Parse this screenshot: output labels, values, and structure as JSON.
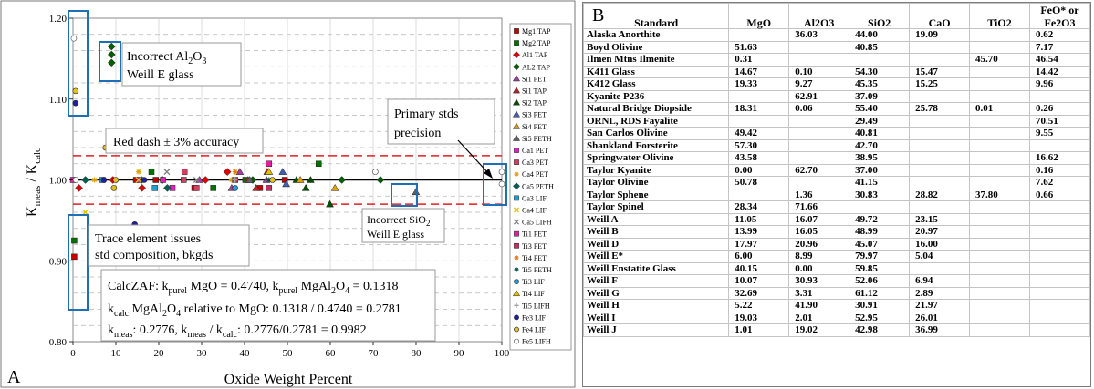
{
  "panel_a": {
    "letter": "A",
    "xlabel": "Oxide Weight Percent",
    "ylabel_main": "K",
    "ylabel_sub1": "meas",
    "ylabel_mid": " / K",
    "ylabel_sub2": "calc",
    "annotations": {
      "al2o3_l1_pre": "Incorrect Al",
      "al2o3_l1_s1": "2",
      "al2o3_l1_mid": "O",
      "al2o3_l1_s2": "3",
      "al2o3_l2": "Weill E glass",
      "red_dash": "Red dash ± 3% accuracy",
      "primary_l1": "Primary stds",
      "primary_l2": "precision",
      "trace_l1": "Trace element issues",
      "trace_l2": "std composition, bkgds",
      "sio2_l1_pre": "Incorrect SiO",
      "sio2_l1_s": "2",
      "sio2_l2": "Weill E glass",
      "calc_l1a": "CalcZAF: k",
      "calc_l1b": "purel",
      "calc_l1c": " MgO = 0.4740, k",
      "calc_l1d": "purel",
      "calc_l1e": " MgAl",
      "calc_l1f": "2",
      "calc_l1g": "O",
      "calc_l1h": "4",
      "calc_l1i": " = 0.1318",
      "calc_l2a": "k",
      "calc_l2b": "calc",
      "calc_l2c": " MgAl",
      "calc_l2d": "2",
      "calc_l2e": "O",
      "calc_l2f": "4",
      "calc_l2g": " relative to MgO: 0.1318 / 0.4740 = 0.2781",
      "calc_l3a": "k",
      "calc_l3b": "meas",
      "calc_l3c": ": 0.2776, k",
      "calc_l3d": "meas",
      "calc_l3e": " / k",
      "calc_l3f": "calc",
      "calc_l3g": ": 0.2776/0.2781 = 0.9982"
    }
  },
  "chart_data": {
    "type": "scatter",
    "xlabel": "Oxide Weight Percent",
    "ylabel": "Kmeas / Kcalc",
    "xlim": [
      0,
      100
    ],
    "ylim": [
      0.8,
      1.2
    ],
    "x_ticks": [
      "0",
      "10",
      "20",
      "30",
      "40",
      "50",
      "60",
      "70",
      "80",
      "90",
      "100"
    ],
    "y_ticks": [
      "0.80",
      "0.90",
      "1.00",
      "1.10",
      "1.20"
    ],
    "reference_line": 1.0,
    "accuracy_band": [
      0.97,
      1.03
    ],
    "grid": true,
    "legend_position": "right",
    "series": [
      {
        "name": "Mg1 TAP",
        "color": "#c00000",
        "marker": "square",
        "points": [
          [
            0.3,
            0.905
          ],
          [
            14.7,
            1.0
          ],
          [
            19.3,
            1.0
          ],
          [
            28.3,
            0.99
          ],
          [
            43.6,
            0.99
          ],
          [
            49.4,
            1.0
          ]
        ]
      },
      {
        "name": "Mg2 TAP",
        "color": "#007000",
        "marker": "square",
        "points": [
          [
            0.3,
            0.925
          ],
          [
            18.3,
            1.01
          ],
          [
            40.2,
            1.0
          ],
          [
            57.3,
            1.02
          ],
          [
            32.7,
            0.99
          ]
        ]
      },
      {
        "name": "Al1 TAP",
        "color": "#e00000",
        "marker": "diamond",
        "points": [
          [
            1.4,
            0.99
          ],
          [
            9.3,
            1.0
          ],
          [
            16.1,
            0.99
          ],
          [
            30.9,
            1.0
          ],
          [
            36.0,
            1.01
          ]
        ]
      },
      {
        "name": "AL2 TAP",
        "color": "#006000",
        "marker": "diamond",
        "points": [
          [
            9.0,
            1.165
          ],
          [
            9.0,
            1.145
          ],
          [
            9.0,
            1.155
          ],
          [
            20.9,
            1.0
          ],
          [
            41.9,
            1.0
          ],
          [
            62.7,
            1.0
          ],
          [
            71.7,
            1.0
          ]
        ]
      },
      {
        "name": "Si1 PET",
        "color": "#a040a0",
        "marker": "triangle",
        "points": [
          [
            29.5,
            1.0
          ],
          [
            37.0,
            0.99
          ],
          [
            38.9,
            1.01
          ],
          [
            45.1,
            1.0
          ]
        ]
      },
      {
        "name": "Si1 TAP",
        "color": "#c02020",
        "marker": "triangle",
        "points": [
          [
            40.8,
            1.0
          ],
          [
            42.7,
            0.99
          ],
          [
            45.3,
            1.01
          ]
        ]
      },
      {
        "name": "Si2 TAP",
        "color": "#005000",
        "marker": "triangle",
        "points": [
          [
            52.1,
            1.0
          ],
          [
            54.3,
            0.99
          ],
          [
            55.4,
            1.0
          ],
          [
            59.9,
            0.97
          ]
        ]
      },
      {
        "name": "Si3 PET",
        "color": "#4060b0",
        "marker": "triangle",
        "points": [
          [
            48.9,
            1.01
          ],
          [
            49.7,
            0.995
          ]
        ]
      },
      {
        "name": "Si4 PET",
        "color": "#e0a000",
        "marker": "triangle",
        "points": [
          [
            61.1,
            0.99
          ],
          [
            53.0,
            1.0
          ]
        ]
      },
      {
        "name": "Si5 PETH",
        "color": "#606060",
        "marker": "triangle",
        "points": [
          [
            41.2,
            1.0
          ],
          [
            79.97,
            0.985
          ]
        ]
      },
      {
        "name": "Ca1 PET",
        "color": "#e020c0",
        "marker": "square",
        "points": [
          [
            15.5,
            1.0
          ],
          [
            20.97,
            1.0
          ],
          [
            23.2,
            0.99
          ]
        ]
      },
      {
        "name": "Ca3 PET",
        "color": "#d04060",
        "marker": "square",
        "points": [
          [
            25.8,
            1.0
          ],
          [
            26.0,
            1.01
          ],
          [
            28.8,
            0.99
          ]
        ]
      },
      {
        "name": "Ca4 PET",
        "color": "#e0a000",
        "marker": "star",
        "points": [
          [
            5.0,
            1.0
          ],
          [
            15.3,
            1.01
          ],
          [
            36.99,
            1.0
          ]
        ]
      },
      {
        "name": "Ca5 PETH",
        "color": "#006050",
        "marker": "diamond",
        "points": [
          [
            16.0,
            1.0
          ],
          [
            22.0,
            0.99
          ],
          [
            2.9,
            1.0
          ]
        ]
      },
      {
        "name": "Ca3 LIF",
        "color": "#20a0d0",
        "marker": "square",
        "points": [
          [
            6.9,
            1.0
          ],
          [
            19.1,
            0.99
          ]
        ]
      },
      {
        "name": "Ca4 LIF",
        "color": "#e0c000",
        "marker": "x",
        "points": [
          [
            2.9,
            0.96
          ],
          [
            15.3,
            1.0
          ]
        ]
      },
      {
        "name": "Ca5 LIFH",
        "color": "#808080",
        "marker": "x",
        "points": [
          [
            21.9,
            1.01
          ],
          [
            28.8,
            1.0
          ]
        ]
      },
      {
        "name": "Ti1 PET",
        "color": "#e020a0",
        "marker": "square",
        "points": [
          [
            0.01,
            1.0
          ],
          [
            45.7,
            1.02
          ]
        ]
      },
      {
        "name": "Ti3 PET",
        "color": "#c03060",
        "marker": "square",
        "points": [
          [
            37.8,
            1.0
          ],
          [
            45.7,
            0.99
          ]
        ]
      },
      {
        "name": "Ti4 PET",
        "color": "#e08000",
        "marker": "star",
        "points": [
          [
            37.8,
            1.01
          ]
        ]
      },
      {
        "name": "Ti5 PETH",
        "color": "#005040",
        "marker": "star",
        "points": [
          [
            45.7,
            1.0
          ]
        ]
      },
      {
        "name": "Ti3 LIF",
        "color": "#20a0e0",
        "marker": "circle",
        "points": [
          [
            37.8,
            0.99
          ]
        ]
      },
      {
        "name": "Ti4 LIF",
        "color": "#e0c000",
        "marker": "triangle",
        "points": [
          [
            45.7,
            1.01
          ]
        ]
      },
      {
        "name": "Ti5 LIFH",
        "color": "#a0a0a0",
        "marker": "plus",
        "points": [
          [
            37.8,
            1.0
          ]
        ]
      },
      {
        "name": "Fe3 LIF",
        "color": "#2020a0",
        "marker": "circle",
        "points": [
          [
            0.6,
            1.095
          ],
          [
            7.2,
            1.0
          ],
          [
            14.4,
            0.945
          ],
          [
            16.6,
            1.0
          ]
        ]
      },
      {
        "name": "Fe4 LIF",
        "color": "#e0c020",
        "marker": "circle",
        "points": [
          [
            0.6,
            1.11
          ],
          [
            7.6,
            1.04
          ],
          [
            9.96,
            1.0
          ],
          [
            9.55,
            0.99
          ],
          [
            46.5,
            1.0
          ]
        ]
      },
      {
        "name": "Fe5 LIFH",
        "color": "#ffffff",
        "marker": "circle",
        "points": [
          [
            0.2,
            1.175
          ],
          [
            0.66,
            1.0
          ],
          [
            70.5,
            1.01
          ],
          [
            100,
            1.01
          ],
          [
            100,
            0.995
          ]
        ]
      }
    ]
  },
  "panel_b": {
    "letter": "B",
    "headers": [
      "Standard",
      "MgO",
      "Al2O3",
      "SiO2",
      "CaO",
      "TiO2",
      "FeO* or Fe2O3"
    ],
    "header_last_l1": "FeO* or",
    "header_last_l2": "Fe2O3",
    "rows": [
      [
        "Alaska Anorthite",
        "",
        "36.03",
        "44.00",
        "19.09",
        "",
        "0.62"
      ],
      [
        "Boyd Olivine",
        "51.63",
        "",
        "40.85",
        "",
        "",
        "7.17"
      ],
      [
        "Ilmen Mtns Ilmenite",
        "0.31",
        "",
        "",
        "",
        "45.70",
        "46.54"
      ],
      [
        "K411 Glass",
        "14.67",
        "0.10",
        "54.30",
        "15.47",
        "",
        "14.42"
      ],
      [
        "K412 Glass",
        "19.33",
        "9.27",
        "45.35",
        "15.25",
        "",
        "9.96"
      ],
      [
        "Kyanite P236",
        "",
        "62.91",
        "37.09",
        "",
        "",
        ""
      ],
      [
        "Natural Bridge Diopside",
        "18.31",
        "0.06",
        "55.40",
        "25.78",
        "0.01",
        "0.26"
      ],
      [
        "ORNL, RDS Fayalite",
        "",
        "",
        "29.49",
        "",
        "",
        "70.51"
      ],
      [
        "San Carlos Olivine",
        "49.42",
        "",
        "40.81",
        "",
        "",
        "9.55"
      ],
      [
        "Shankland Forsterite",
        "57.30",
        "",
        "42.70",
        "",
        "",
        ""
      ],
      [
        "Springwater Olivine",
        "43.58",
        "",
        "38.95",
        "",
        "",
        "16.62"
      ],
      [
        "Taylor Kyanite",
        "0.00",
        "62.70",
        "37.00",
        "",
        "",
        "0.16"
      ],
      [
        "Taylor Olivine",
        "50.78",
        "",
        "41.15",
        "",
        "",
        "7.62"
      ],
      [
        "Taylor Sphene",
        "",
        "1.36",
        "30.83",
        "28.82",
        "37.80",
        "0.66"
      ],
      [
        "Taylor Spinel",
        "28.34",
        "71.66",
        "",
        "",
        "",
        ""
      ],
      [
        "Weill A",
        "11.05",
        "16.07",
        "49.72",
        "23.15",
        "",
        ""
      ],
      [
        "Weill B",
        "13.99",
        "16.05",
        "48.99",
        "20.97",
        "",
        ""
      ],
      [
        "Weill D",
        "17.97",
        "20.96",
        "45.07",
        "16.00",
        "",
        ""
      ],
      [
        "Weill E*",
        "6.00",
        "8.99",
        "79.97",
        "5.04",
        "",
        ""
      ],
      [
        "Weill Enstatite Glass",
        "40.15",
        "0.00",
        "59.85",
        "",
        "",
        ""
      ],
      [
        "Weill F",
        "10.07",
        "30.93",
        "52.06",
        "6.94",
        "",
        ""
      ],
      [
        "Weill G",
        "32.69",
        "3.31",
        "61.12",
        "2.89",
        "",
        ""
      ],
      [
        "Weill H",
        "5.22",
        "41.90",
        "30.91",
        "21.97",
        "",
        ""
      ],
      [
        "Weill I",
        "19.03",
        "2.01",
        "52.95",
        "26.01",
        "",
        ""
      ],
      [
        "Weill J",
        "1.01",
        "19.02",
        "42.98",
        "36.99",
        "",
        ""
      ]
    ]
  }
}
